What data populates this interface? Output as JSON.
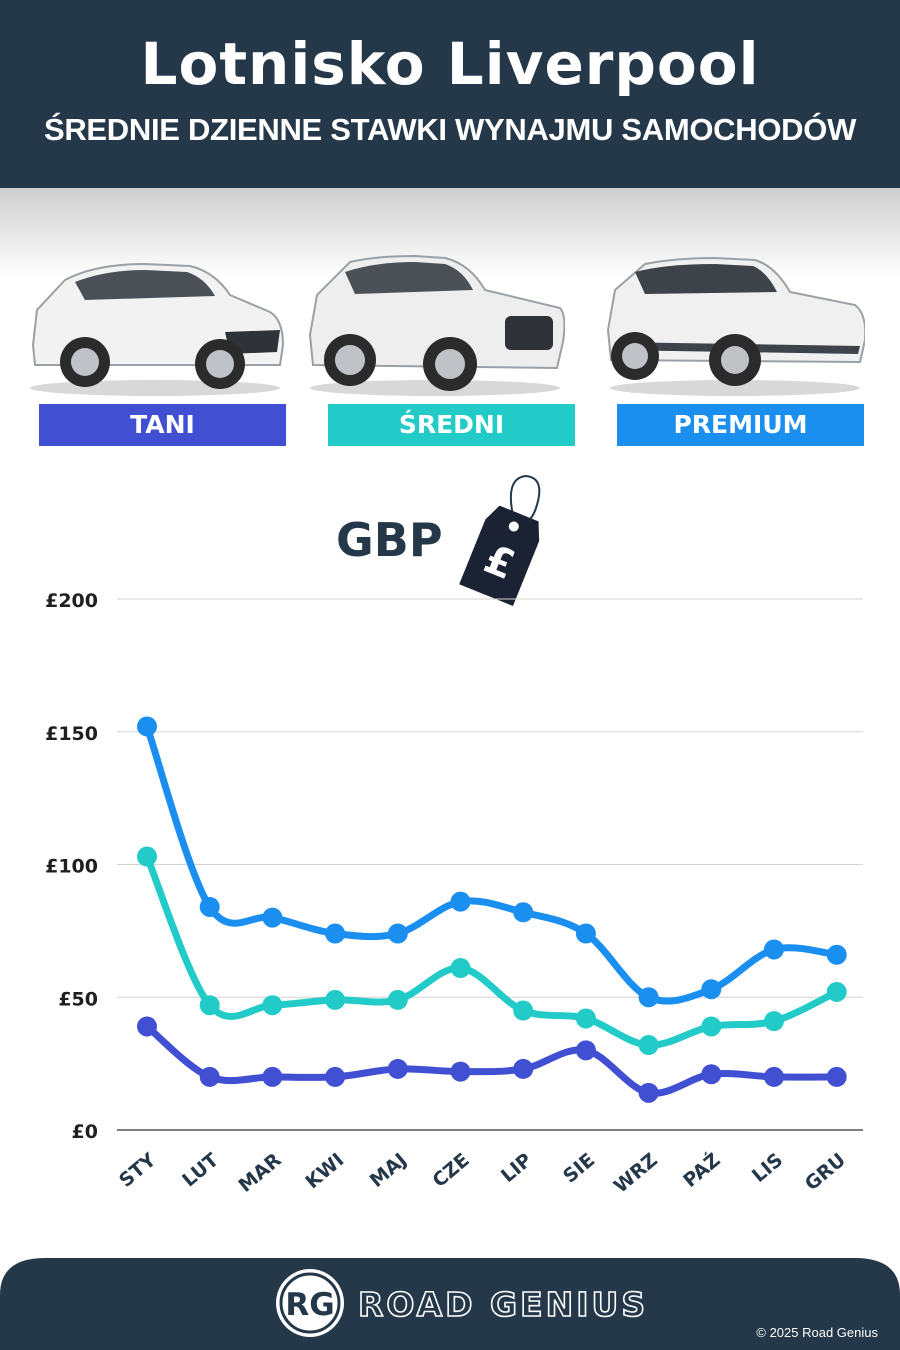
{
  "header": {
    "title": "Lotnisko Liverpool",
    "subtitle": "ŚREDNIE DZIENNE STAWKI WYNAJMU SAMOCHODÓW"
  },
  "categories": [
    {
      "label": "TANI",
      "color": "#4150d3"
    },
    {
      "label": "ŚREDNI",
      "color": "#22cbc8"
    },
    {
      "label": "PREMIUM",
      "color": "#1b8ff0"
    }
  ],
  "currency": {
    "label": "GBP",
    "tag_symbol": "£"
  },
  "chart_data": {
    "type": "line",
    "categories": [
      "STY",
      "LUT",
      "MAR",
      "KWI",
      "MAJ",
      "CZE",
      "LIP",
      "SIE",
      "WRZ",
      "PAŹ",
      "LIS",
      "GRU"
    ],
    "series": [
      {
        "name": "PREMIUM",
        "color": "#1b8ff0",
        "values": [
          152,
          84,
          80,
          74,
          74,
          86,
          82,
          74,
          50,
          53,
          68,
          66
        ]
      },
      {
        "name": "ŚREDNI",
        "color": "#22cbc8",
        "values": [
          103,
          47,
          47,
          49,
          49,
          61,
          45,
          42,
          32,
          39,
          41,
          52
        ]
      },
      {
        "name": "TANI",
        "color": "#4150d3",
        "values": [
          39,
          20,
          20,
          20,
          23,
          22,
          23,
          30,
          14,
          21,
          20,
          20
        ]
      }
    ],
    "ylim": [
      0,
      200
    ],
    "yticks": [
      0,
      50,
      100,
      150,
      200
    ],
    "ytick_labels": [
      "£0",
      "£50",
      "£100",
      "£150",
      "£200"
    ],
    "grid": true
  },
  "footer": {
    "logo_initials": "RG",
    "brand": "ROAD GENIUS",
    "copyright": "© 2025 Road Genius"
  }
}
